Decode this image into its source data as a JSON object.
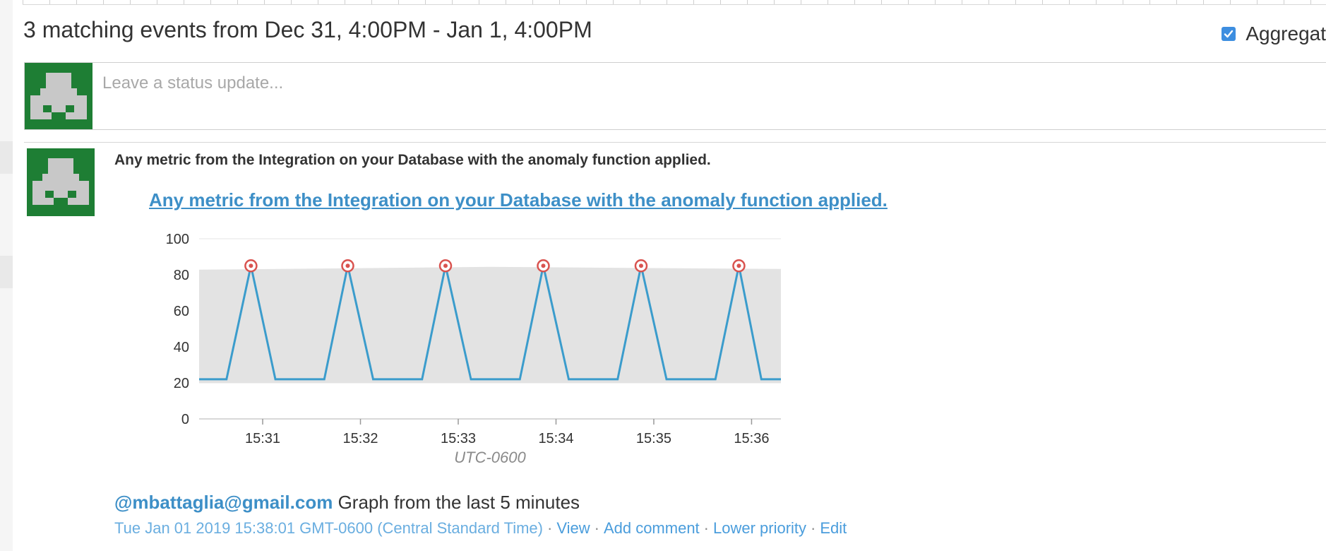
{
  "header": {
    "title": "3 matching events from Dec 31, 4:00PM - Jan 1, 4:00PM",
    "aggregate_label": "Aggregat"
  },
  "status": {
    "placeholder": "Leave a status update..."
  },
  "event": {
    "title": "Any metric from the Integration on your Database with the anomaly function applied.",
    "link_text": "Any metric from the Integration on your Database with the anomaly function applied.",
    "mention": "@mbattaglia@gmail.com",
    "footer_text": "Graph from the last 5 minutes",
    "timestamp": "Tue Jan 01 2019 15:38:01 GMT-0600 (Central Standard Time)",
    "actions": {
      "view": "View",
      "add_comment": "Add comment",
      "lower_priority": "Lower priority",
      "edit": "Edit"
    },
    "separator": "·"
  },
  "colors": {
    "accent": "#3d8fc7",
    "avatar_green": "#1e7e34",
    "line": "#3b9ccc",
    "band": "#e3e3e3",
    "marker": "#d9534f"
  },
  "chart_data": {
    "type": "line",
    "timezone_label": "UTC-0600",
    "ylim": [
      0,
      100
    ],
    "yticks": [
      0,
      20,
      40,
      60,
      80,
      100
    ],
    "xlim": [
      30.35,
      36.3
    ],
    "x_tick_values": [
      31,
      32,
      33,
      34,
      35,
      36
    ],
    "x_tick_labels": [
      "15:31",
      "15:32",
      "15:33",
      "15:34",
      "15:35",
      "15:36"
    ],
    "band": {
      "lower": 20,
      "upper": 84
    },
    "series": [
      {
        "x": [
          30.35,
          30.63,
          30.88,
          31.13,
          31.63,
          31.87,
          32.13,
          32.63,
          32.87,
          33.13,
          33.63,
          33.87,
          34.13,
          34.63,
          34.87,
          35.13,
          35.63,
          35.87,
          36.1,
          36.3
        ],
        "values": [
          22,
          22,
          85,
          22,
          22,
          85,
          22,
          22,
          85,
          22,
          22,
          85,
          22,
          22,
          85,
          22,
          22,
          85,
          22,
          22
        ]
      }
    ],
    "anomalies": [
      {
        "x": 30.88,
        "y": 85
      },
      {
        "x": 31.87,
        "y": 85
      },
      {
        "x": 32.87,
        "y": 85
      },
      {
        "x": 33.87,
        "y": 85
      },
      {
        "x": 34.87,
        "y": 85
      },
      {
        "x": 35.87,
        "y": 85
      }
    ],
    "grid": "horizontal"
  }
}
